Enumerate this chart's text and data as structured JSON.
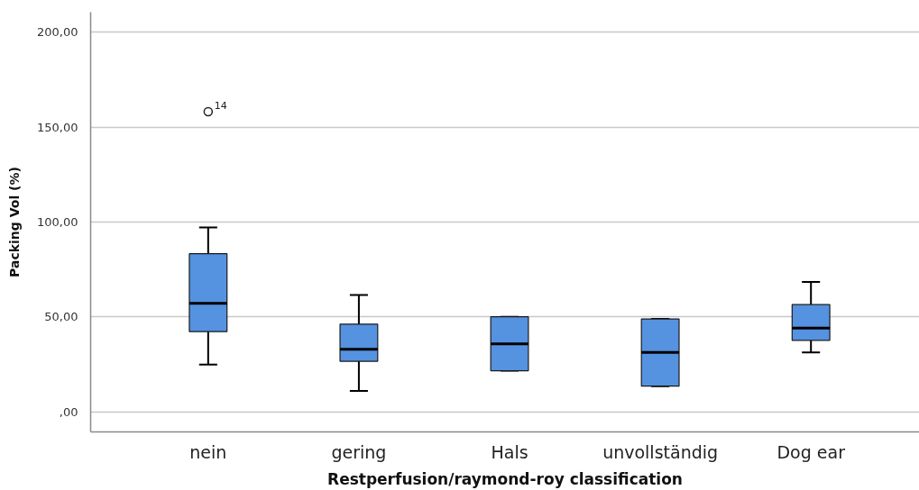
{
  "chart_data": {
    "type": "box",
    "xlabel": "Restperfusion/raymond-roy classification",
    "ylabel": "Packing Vol (%)",
    "categories": [
      "nein",
      "gering",
      "Hals",
      "unvollständig",
      "Dog ear"
    ],
    "series": [
      {
        "color": "#5592e0",
        "boxes": [
          {
            "low": 25.0,
            "q1": 42.3,
            "median": 57.2,
            "q3": 83.3,
            "high": 97.2,
            "outliers": [
              158.1
            ]
          },
          {
            "low": 11.1,
            "q1": 26.7,
            "median": 33.0,
            "q3": 46.2,
            "high": 61.6
          },
          {
            "low": 21.7,
            "q1": 21.7,
            "median": 35.8,
            "q3": 50.1,
            "high": 50.1
          },
          {
            "low": 13.6,
            "q1": 13.6,
            "median": 31.4,
            "q3": 49.0,
            "high": 49.0
          },
          {
            "low": 31.3,
            "q1": 37.7,
            "median": 44.1,
            "q3": 56.5,
            "high": 68.5
          }
        ]
      }
    ],
    "annotations": [
      "14"
    ],
    "ylim": [
      -10.5,
      210.5
    ],
    "yticks": [
      {
        "value": 0,
        "label": ",00"
      },
      {
        "value": 50,
        "label": "50,00"
      },
      {
        "value": 100,
        "label": "100,00"
      },
      {
        "value": 150,
        "label": "150,00"
      },
      {
        "value": 200,
        "label": "200,00"
      }
    ],
    "grid": "y",
    "marker": "circle"
  }
}
